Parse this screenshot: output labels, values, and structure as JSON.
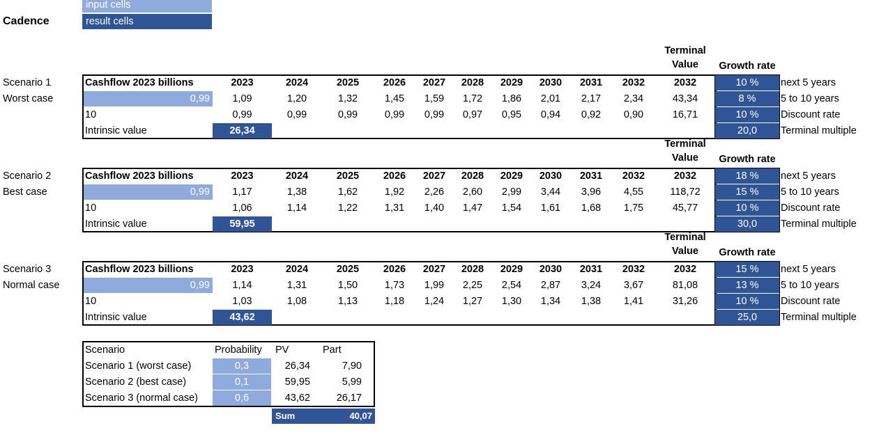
{
  "legend": {
    "input": "input cells",
    "result": "result cells"
  },
  "title": "Cadence",
  "scenarios": [
    {
      "label": "Scenario 1",
      "case": "Worst case",
      "header_label": "Cashflow 2023 billions",
      "years": [
        "2023",
        "2024",
        "2025",
        "2026",
        "2027",
        "2028",
        "2029",
        "2030",
        "2031",
        "2032"
      ],
      "terminal_year": "2032",
      "terminal_title_1": "Terminal",
      "terminal_title_2": "Value",
      "growth_title": "Growth rate",
      "cashflow_input": "0,99",
      "cashflows": [
        "1,09",
        "1,20",
        "1,32",
        "1,45",
        "1,59",
        "1,72",
        "1,86",
        "2,01",
        "2,17",
        "2,34"
      ],
      "terminal_value": "43,34",
      "row3_label": "10",
      "discounted": [
        "0,99",
        "0,99",
        "0,99",
        "0,99",
        "0,99",
        "0,97",
        "0,95",
        "0,94",
        "0,92",
        "0,90"
      ],
      "discounted_terminal": "16,71",
      "intrinsic_label": "Intrinsic value",
      "intrinsic_value": "26,34",
      "growth_next5": "10 %",
      "growth_5to10": "8 %",
      "discount_rate": "10 %",
      "terminal_multiple": "20,0"
    },
    {
      "label": "Scenario 2",
      "case": "Best case",
      "header_label": "Cashflow 2023 billions",
      "years": [
        "2023",
        "2024",
        "2025",
        "2026",
        "2027",
        "2028",
        "2029",
        "2030",
        "2031",
        "2032"
      ],
      "terminal_year": "2032",
      "terminal_title_1": "Terminal",
      "terminal_title_2": "Value",
      "growth_title": "Growth rate",
      "cashflow_input": "0,99",
      "cashflows": [
        "1,17",
        "1,38",
        "1,62",
        "1,92",
        "2,26",
        "2,60",
        "2,99",
        "3,44",
        "3,96",
        "4,55"
      ],
      "terminal_value": "118,72",
      "row3_label": "10",
      "discounted": [
        "1,06",
        "1,14",
        "1,22",
        "1,31",
        "1,40",
        "1,47",
        "1,54",
        "1,61",
        "1,68",
        "1,75"
      ],
      "discounted_terminal": "45,77",
      "intrinsic_label": "Intrinsic value",
      "intrinsic_value": "59,95",
      "growth_next5": "18 %",
      "growth_5to10": "15 %",
      "discount_rate": "10 %",
      "terminal_multiple": "30,0"
    },
    {
      "label": "Scenario 3",
      "case": "Normal case",
      "header_label": "Cashflow 2023 billions",
      "years": [
        "2023",
        "2024",
        "2025",
        "2026",
        "2027",
        "2028",
        "2029",
        "2030",
        "2031",
        "2032"
      ],
      "terminal_year": "2032",
      "terminal_title_1": "Terminal",
      "terminal_title_2": "Value",
      "growth_title": "Growth rate",
      "cashflow_input": "0,99",
      "cashflows": [
        "1,14",
        "1,31",
        "1,50",
        "1,73",
        "1,99",
        "2,25",
        "2,54",
        "2,87",
        "3,24",
        "3,67"
      ],
      "terminal_value": "81,08",
      "row3_label": "10",
      "discounted": [
        "1,03",
        "1,08",
        "1,13",
        "1,18",
        "1,24",
        "1,27",
        "1,30",
        "1,34",
        "1,38",
        "1,41"
      ],
      "discounted_terminal": "31,26",
      "intrinsic_label": "Intrinsic value",
      "intrinsic_value": "43,62",
      "growth_next5": "15 %",
      "growth_5to10": "13 %",
      "discount_rate": "10 %",
      "terminal_multiple": "25,0"
    }
  ],
  "param_labels": [
    "next 5 years",
    "5 to 10 years",
    "Discount rate",
    "Terminal multiple"
  ],
  "summary": {
    "headers": [
      "Scenario",
      "Probability",
      "PV",
      "Part"
    ],
    "rows": [
      {
        "name": "Scenario 1 (worst case)",
        "probability": "0,3",
        "pv": "26,34",
        "part": "7,90"
      },
      {
        "name": "Scenario 2 (best case)",
        "probability": "0,1",
        "pv": "59,95",
        "part": "5,99"
      },
      {
        "name": "Scenario 3 (normal case)",
        "probability": "0,6",
        "pv": "43,62",
        "part": "26,17"
      }
    ],
    "sum_label": "Sum",
    "sum_value": "40,07"
  }
}
